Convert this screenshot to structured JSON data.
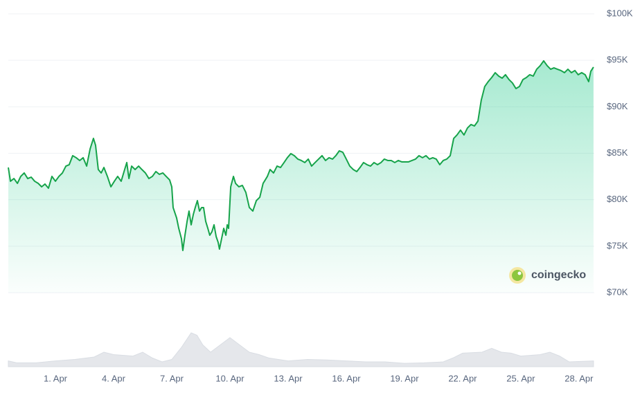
{
  "chart_data": [
    {
      "type": "area",
      "watermark": "coingecko",
      "color": "#16a34a",
      "x": [
        -1.43,
        -1.32,
        -1.14,
        -0.96,
        -0.79,
        -0.61,
        -0.43,
        -0.25,
        -0.07,
        0.11,
        0.29,
        0.46,
        0.64,
        0.82,
        1,
        1.18,
        1.36,
        1.54,
        1.71,
        1.89,
        2.07,
        2.25,
        2.43,
        2.61,
        2.79,
        2.96,
        3.07,
        3.21,
        3.36,
        3.5,
        3.68,
        3.86,
        4.04,
        4.21,
        4.39,
        4.57,
        4.68,
        4.79,
        4.93,
        5.11,
        5.29,
        5.46,
        5.64,
        5.82,
        6,
        6.18,
        6.36,
        6.54,
        6.71,
        6.89,
        7,
        7.07,
        7.25,
        7.36,
        7.5,
        7.57,
        7.68,
        7.79,
        7.89,
        8,
        8.11,
        8.21,
        8.32,
        8.43,
        8.54,
        8.64,
        8.75,
        8.86,
        8.96,
        9.07,
        9.18,
        9.29,
        9.39,
        9.46,
        9.57,
        9.68,
        9.79,
        9.86,
        9.93,
        10.04,
        10.18,
        10.29,
        10.46,
        10.64,
        10.82,
        11,
        11.18,
        11.36,
        11.54,
        11.71,
        11.82,
        11.93,
        12.07,
        12.25,
        12.43,
        12.61,
        12.79,
        12.96,
        13.14,
        13.32,
        13.5,
        13.68,
        13.86,
        14.04,
        14.21,
        14.39,
        14.57,
        14.75,
        14.93,
        15.11,
        15.29,
        15.46,
        15.64,
        15.82,
        16,
        16.18,
        16.36,
        16.54,
        16.71,
        16.89,
        17.07,
        17.25,
        17.43,
        17.61,
        17.79,
        17.96,
        18.14,
        18.32,
        18.5,
        18.68,
        18.86,
        19.21,
        19.57,
        19.75,
        19.93,
        20.11,
        20.29,
        20.46,
        20.64,
        20.82,
        21,
        21.18,
        21.36,
        21.54,
        21.71,
        21.89,
        22.07,
        22.25,
        22.43,
        22.61,
        22.79,
        22.96,
        23.14,
        23.32,
        23.5,
        23.68,
        23.86,
        24.04,
        24.21,
        24.39,
        24.57,
        24.75,
        24.93,
        25.11,
        25.29,
        25.46,
        25.64,
        25.82,
        26,
        26.18,
        26.36,
        26.54,
        26.71,
        26.89,
        27.07,
        27.25,
        27.43,
        27.61,
        27.79,
        27.96,
        28.14,
        28.32,
        28.5,
        28.61,
        28.75
      ],
      "values": [
        83470,
        81990,
        82280,
        81760,
        82510,
        82880,
        82280,
        82430,
        81990,
        81760,
        81390,
        81690,
        81240,
        82510,
        81990,
        82510,
        82880,
        83620,
        83770,
        84740,
        84520,
        84220,
        84520,
        83620,
        85480,
        86600,
        85860,
        83250,
        82880,
        83470,
        82510,
        81390,
        81990,
        82510,
        81990,
        83250,
        84000,
        82280,
        83620,
        83250,
        83620,
        83250,
        82880,
        82280,
        82510,
        83030,
        82730,
        82880,
        82510,
        82130,
        81390,
        79160,
        78040,
        76920,
        75810,
        74540,
        76180,
        77670,
        78780,
        77300,
        78410,
        79160,
        79900,
        78780,
        79160,
        79160,
        77670,
        76920,
        76180,
        76550,
        77300,
        76030,
        75430,
        74690,
        75810,
        76920,
        76180,
        77300,
        76920,
        81390,
        82510,
        81760,
        81390,
        81540,
        80790,
        79160,
        78780,
        79900,
        80270,
        81760,
        82130,
        82510,
        83250,
        82880,
        83620,
        83470,
        84000,
        84520,
        84960,
        84740,
        84370,
        84220,
        84000,
        84370,
        83620,
        84000,
        84370,
        84740,
        84220,
        84520,
        84370,
        84740,
        85260,
        85110,
        84370,
        83620,
        83250,
        83030,
        83470,
        84000,
        83770,
        83620,
        84000,
        83770,
        84000,
        84370,
        84220,
        84220,
        84000,
        84220,
        84070,
        84070,
        84370,
        84740,
        84520,
        84740,
        84370,
        84520,
        84370,
        83770,
        84220,
        84370,
        84740,
        86600,
        86970,
        87490,
        86970,
        87720,
        88090,
        87940,
        88460,
        90700,
        92180,
        92710,
        93150,
        93670,
        93300,
        93080,
        93450,
        92930,
        92560,
        91960,
        92180,
        92930,
        93150,
        93450,
        93300,
        94040,
        94420,
        94940,
        94420,
        94040,
        94190,
        94040,
        93900,
        93670,
        94040,
        93670,
        93900,
        93450,
        93670,
        93450,
        92710,
        93820,
        94270
      ],
      "xlim": [
        -1.43,
        28.79
      ],
      "xticks": [
        {
          "value": 1,
          "label": "1. Apr"
        },
        {
          "value": 4,
          "label": "4. Apr"
        },
        {
          "value": 7,
          "label": "7. Apr"
        },
        {
          "value": 10,
          "label": "10. Apr"
        },
        {
          "value": 13,
          "label": "13. Apr"
        },
        {
          "value": 16,
          "label": "16. Apr"
        },
        {
          "value": 19,
          "label": "19. Apr"
        },
        {
          "value": 22,
          "label": "22. Apr"
        },
        {
          "value": 25,
          "label": "25. Apr"
        },
        {
          "value": 28,
          "label": "28. Apr"
        }
      ],
      "ylim": [
        70000,
        100000
      ],
      "yticks": [
        {
          "value": 70000,
          "label": "$70K"
        },
        {
          "value": 75000,
          "label": "$75K"
        },
        {
          "value": 80000,
          "label": "$80K"
        },
        {
          "value": 85000,
          "label": "$85K"
        },
        {
          "value": 90000,
          "label": "$90K"
        },
        {
          "value": 95000,
          "label": "$95K"
        },
        {
          "value": 100000,
          "label": "$100K"
        }
      ],
      "grid": true
    },
    {
      "type": "area",
      "color": "#e5e7eb",
      "x": [
        -1.43,
        -1,
        0,
        1,
        2,
        3,
        3.5,
        4,
        5,
        5.5,
        6,
        6.5,
        7,
        7.5,
        8,
        8.3,
        8.6,
        9,
        9.5,
        10,
        10.5,
        11,
        11.5,
        12,
        13,
        14,
        15,
        16,
        17,
        18,
        19,
        20,
        21,
        21.5,
        22,
        23,
        23.5,
        24,
        24.5,
        25,
        26,
        26.5,
        27,
        27.5,
        28.75
      ],
      "values": [
        12,
        8,
        8,
        12,
        15,
        20,
        30,
        25,
        22,
        30,
        18,
        10,
        15,
        40,
        70,
        65,
        45,
        30,
        45,
        60,
        45,
        30,
        25,
        18,
        12,
        15,
        14,
        12,
        10,
        10,
        7,
        8,
        10,
        18,
        28,
        30,
        38,
        30,
        28,
        22,
        25,
        30,
        22,
        10,
        12
      ],
      "xlim": [
        -1.43,
        28.79
      ],
      "ylim": [
        0,
        100
      ]
    }
  ]
}
